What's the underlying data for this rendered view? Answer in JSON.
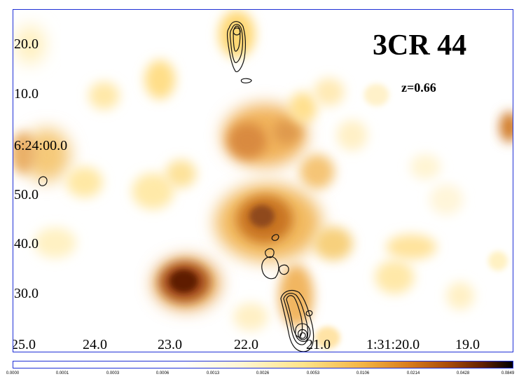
{
  "image": {
    "title": "3CR 44",
    "redshift": "z=0.66",
    "colors": {
      "frame": "#1f2fd6",
      "low": "#fff4c7",
      "mid": "#f0a942",
      "high": "#8f3602",
      "peak": "#000000"
    }
  },
  "axes": {
    "y_labels": [
      "20.0",
      "10.0",
      "6:24:00.0",
      "50.0",
      "40.0",
      "30.0"
    ],
    "x_labels": [
      "25.0",
      "24.0",
      "23.0",
      "22.0",
      "21.0",
      "1:31:20.0",
      "19.0"
    ]
  },
  "colorbar": {
    "labels": [
      "0.0000",
      "0.0001",
      "0.0003",
      "0.0006",
      "0.0013",
      "0.0026",
      "0.0053",
      "0.0106",
      "0.0214",
      "0.0428",
      "0.0849"
    ]
  }
}
